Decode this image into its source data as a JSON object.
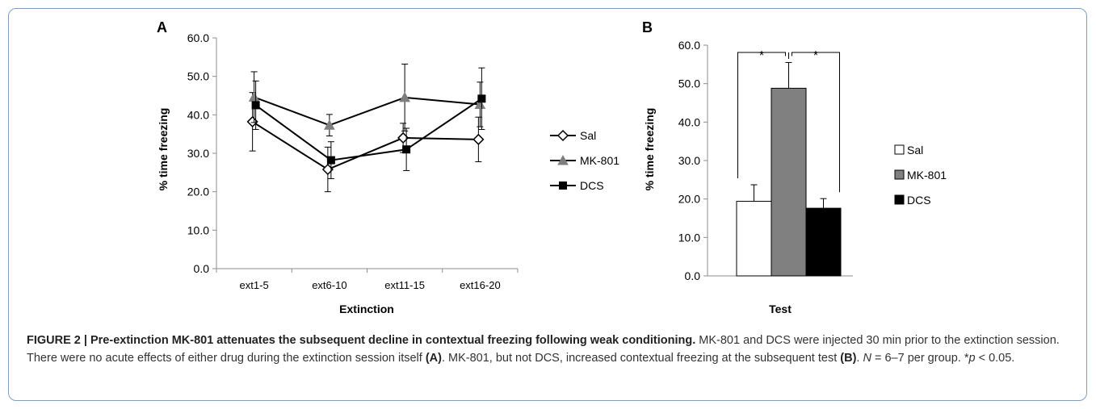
{
  "chart_data": [
    {
      "panel_label": "A",
      "type": "line",
      "categories": [
        "ext1-5",
        "ext6-10",
        "ext11-15",
        "ext16-20"
      ],
      "xlabel": "Extinction",
      "ylabel": "% time freezing",
      "ylim": [
        0,
        60
      ],
      "yticks": [
        "0.0",
        "10.0",
        "20.0",
        "30.0",
        "40.0",
        "50.0",
        "60.0"
      ],
      "legend_position": "right",
      "series": [
        {
          "name": "Sal",
          "values": [
            38.2,
            25.8,
            34.0,
            33.6
          ],
          "errors": [
            7.6,
            5.8,
            3.8,
            5.8
          ],
          "marker": "diamond-open",
          "color": "#000000"
        },
        {
          "name": "MK-801",
          "values": [
            44.6,
            37.3,
            44.5,
            42.7
          ],
          "errors": [
            6.6,
            2.8,
            8.7,
            5.8
          ],
          "marker": "triangle",
          "color": "#7f7f7f"
        },
        {
          "name": "DCS",
          "values": [
            42.5,
            28.2,
            31.0,
            44.2
          ],
          "errors": [
            6.3,
            4.8,
            5.5,
            8.0
          ],
          "marker": "square",
          "color": "#000000"
        }
      ]
    },
    {
      "panel_label": "B",
      "type": "bar",
      "categories": [
        "Sal",
        "MK-801",
        "DCS"
      ],
      "values": [
        19.4,
        48.8,
        17.6
      ],
      "errors": [
        4.3,
        6.7,
        2.5
      ],
      "colors": [
        "#ffffff",
        "#808080",
        "#000000"
      ],
      "xlabel": "Test",
      "ylabel": "% time freezing",
      "ylim": [
        0,
        60
      ],
      "yticks": [
        "0.0",
        "10.0",
        "20.0",
        "30.0",
        "40.0",
        "50.0",
        "60.0"
      ],
      "legend_position": "right",
      "significance": [
        "*",
        "*"
      ]
    }
  ],
  "caption": {
    "bold_title": "FIGURE 2 | Pre-extinction MK-801 attenuates the subsequent decline in contextual freezing following weak conditioning.",
    "text_1": " MK-801 and DCS were injected 30 min prior to the extinction session. There were no acute effects of either drug during the extinction session itself ",
    "ref_a": "(A)",
    "text_2": ". MK-801, but not DCS, increased contextual freezing at the subsequent test ",
    "ref_b": "(B)",
    "text_3": ". ",
    "n_symbol": "N",
    "n_text": " = 6–7 per group. *",
    "p_symbol": "p",
    "p_text": " < 0.05."
  }
}
